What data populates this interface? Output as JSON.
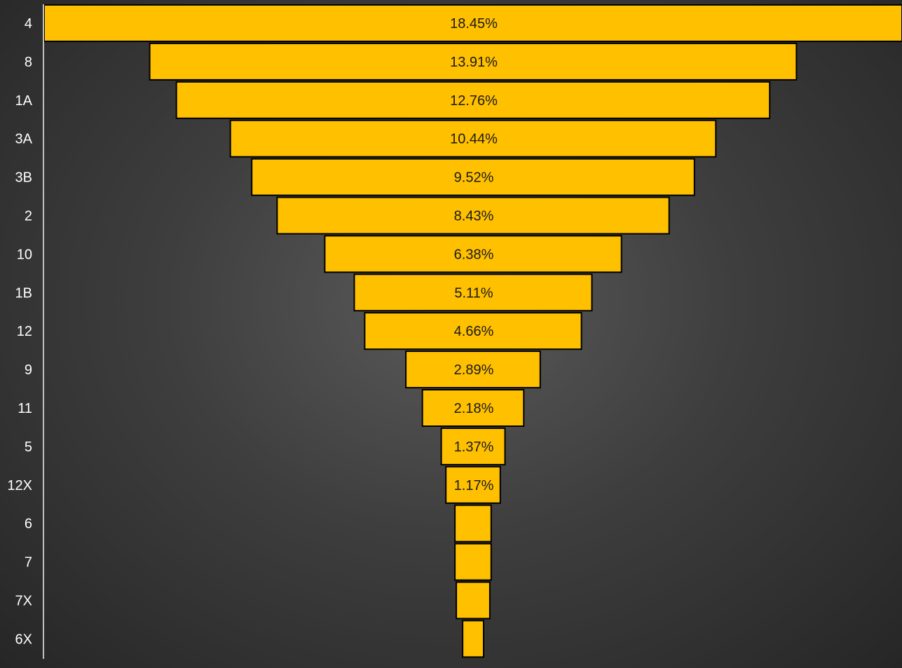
{
  "chart_data": {
    "type": "bar",
    "orientation": "horizontal",
    "style": "funnel",
    "categories": [
      "4",
      "8",
      "1A",
      "3A",
      "3B",
      "2",
      "10",
      "1B",
      "12",
      "9",
      "11",
      "5",
      "12X",
      "6",
      "7",
      "7X",
      "6X"
    ],
    "values": [
      18.45,
      13.91,
      12.76,
      10.44,
      9.52,
      8.43,
      6.38,
      5.11,
      4.66,
      2.89,
      2.18,
      1.37,
      1.17,
      0.78,
      0.78,
      0.72,
      0.45
    ],
    "data_labels": [
      "18.45%",
      "13.91%",
      "12.76%",
      "10.44%",
      "9.52%",
      "8.43%",
      "6.38%",
      "5.11%",
      "4.66%",
      "2.89%",
      "2.18%",
      "1.37%",
      "1.17%",
      "",
      "",
      "",
      ""
    ],
    "title": "",
    "xlabel": "",
    "ylabel": "",
    "grid": false,
    "legend": "none",
    "colors": {
      "bar_fill": "#FFC000",
      "bar_stroke": "#000000",
      "category_text": "#FFFFFF",
      "data_label_text": "#1A1A1A",
      "axis_line": "#BFBFBF",
      "background_center": "#5A5A5A",
      "background_edge": "#262626"
    }
  }
}
